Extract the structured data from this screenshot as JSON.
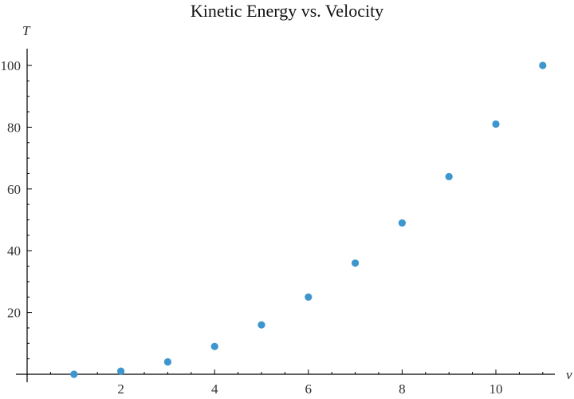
{
  "chart_data": {
    "type": "scatter",
    "title": "Kinetic Energy vs. Velocity",
    "xlabel": "v",
    "ylabel": "T",
    "x": [
      1,
      2,
      3,
      4,
      5,
      6,
      7,
      8,
      9,
      10,
      11
    ],
    "y": [
      0,
      1,
      4,
      9,
      16,
      25,
      36,
      49,
      64,
      81,
      100
    ],
    "series": [
      {
        "name": "T",
        "x": [
          1,
          2,
          3,
          4,
          5,
          6,
          7,
          8,
          9,
          10,
          11
        ],
        "values": [
          0,
          1,
          4,
          9,
          16,
          25,
          36,
          49,
          64,
          81,
          100
        ]
      }
    ],
    "xlim": [
      0,
      11.3
    ],
    "ylim": [
      0,
      105
    ],
    "x_ticks": [
      2,
      4,
      6,
      8,
      10
    ],
    "y_ticks": [
      20,
      40,
      60,
      80,
      100
    ],
    "grid": false,
    "legend": null,
    "point_color": "#3D96CE"
  },
  "labels": {
    "title": "Kinetic Energy vs. Velocity",
    "xaxis": "v",
    "yaxis": "T"
  }
}
